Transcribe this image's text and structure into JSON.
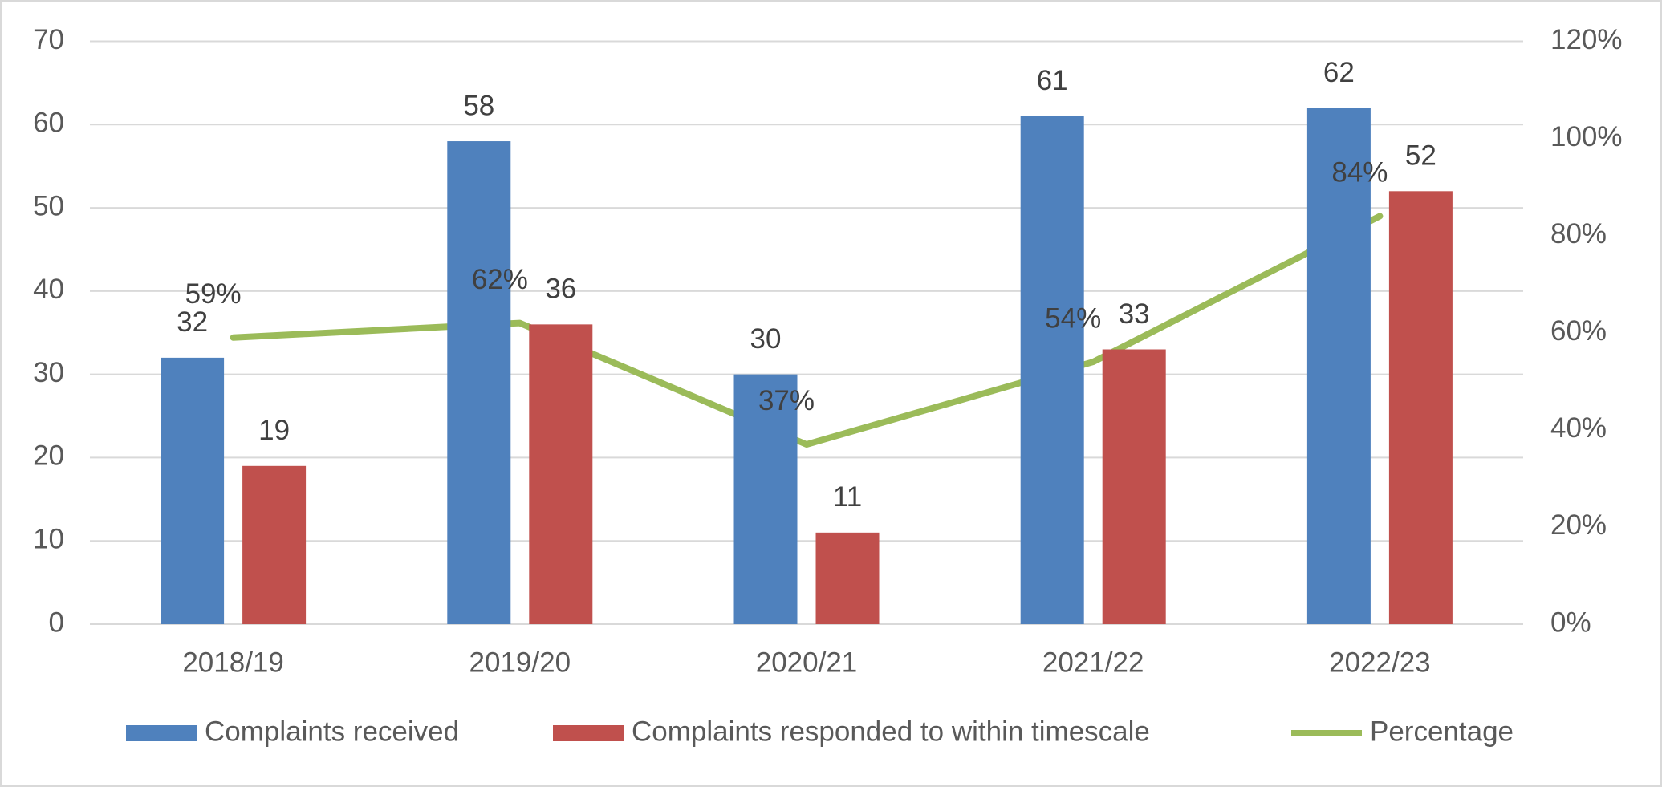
{
  "chart_data": {
    "type": "bar",
    "categories": [
      "2018/19",
      "2019/20",
      "2020/21",
      "2021/22",
      "2022/23"
    ],
    "series": [
      {
        "name": "Complaints received",
        "color": "#4f81bd",
        "values": [
          32,
          58,
          30,
          61,
          62
        ]
      },
      {
        "name": "Complaints responded to within timescale",
        "color": "#c0504d",
        "values": [
          19,
          36,
          11,
          33,
          52
        ]
      },
      {
        "name": "Percentage",
        "type": "line",
        "axis": "y2",
        "color": "#9bbb59",
        "values": [
          59,
          62,
          37,
          54,
          84
        ],
        "value_labels": [
          "59%",
          "62%",
          "37%",
          "54%",
          "84%"
        ]
      }
    ],
    "ylim": [
      0,
      70
    ],
    "yticks": [
      0,
      10,
      20,
      30,
      40,
      50,
      60,
      70
    ],
    "y2lim": [
      0,
      120
    ],
    "y2ticks": [
      {
        "value": 0,
        "label": "0%"
      },
      {
        "value": 20,
        "label": "20%"
      },
      {
        "value": 40,
        "label": "40%"
      },
      {
        "value": 60,
        "label": "60%"
      },
      {
        "value": 80,
        "label": "80%"
      },
      {
        "value": 100,
        "label": "100%"
      },
      {
        "value": 120,
        "label": "120%"
      }
    ],
    "grid": true,
    "legend": "bottom"
  }
}
